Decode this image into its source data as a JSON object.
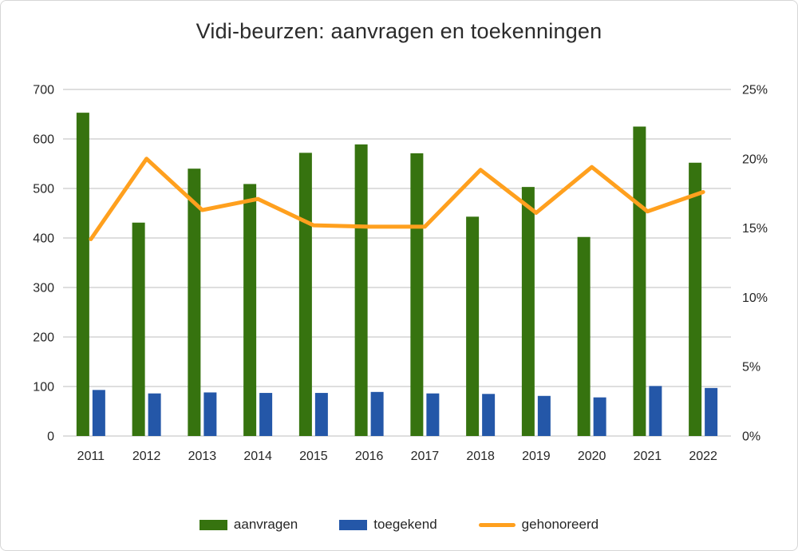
{
  "chart_data": {
    "type": "combo",
    "title": "Vidi-beurzen: aanvragen en toekenningen",
    "categories": [
      "2011",
      "2012",
      "2013",
      "2014",
      "2015",
      "2016",
      "2017",
      "2018",
      "2019",
      "2020",
      "2021",
      "2022"
    ],
    "series": [
      {
        "name": "aanvragen",
        "type": "bar",
        "axis": "left",
        "color": "#36730f",
        "values": [
          653,
          431,
          540,
          509,
          572,
          589,
          571,
          443,
          503,
          402,
          625,
          552
        ]
      },
      {
        "name": "toegekend",
        "type": "bar",
        "axis": "left",
        "color": "#2457a8",
        "values": [
          93,
          86,
          88,
          87,
          87,
          89,
          86,
          85,
          81,
          78,
          101,
          97
        ]
      },
      {
        "name": "gehonoreerd",
        "type": "line",
        "axis": "right",
        "color": "#ffa01e",
        "values": [
          14.2,
          20.0,
          16.3,
          17.1,
          15.2,
          15.1,
          15.1,
          19.2,
          16.1,
          19.4,
          16.2,
          17.6
        ]
      }
    ],
    "left_axis": {
      "min": 0,
      "max": 700,
      "step": 100,
      "tick_values": [
        0,
        100,
        200,
        300,
        400,
        500,
        600,
        700
      ],
      "tick_labels": [
        "0",
        "100",
        "200",
        "300",
        "400",
        "500",
        "600",
        "700"
      ]
    },
    "right_axis": {
      "min": 0,
      "max": 25,
      "step": 5,
      "tick_values": [
        0,
        5,
        10,
        15,
        20,
        25
      ],
      "tick_labels": [
        "0%",
        "5%",
        "10%",
        "15%",
        "20%",
        "25%"
      ]
    },
    "grid": true,
    "gridline_color": "#c9c9c9",
    "legend_position": "bottom"
  }
}
